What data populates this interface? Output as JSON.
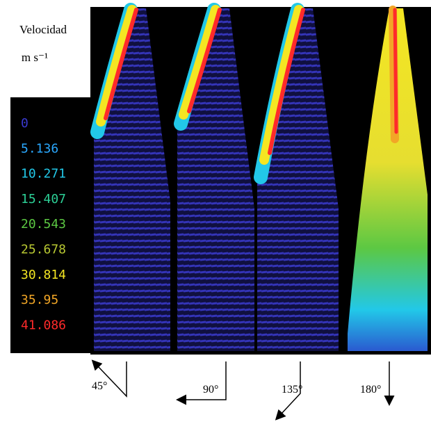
{
  "legend": {
    "title": "Velocidad",
    "unit": "m s⁻¹",
    "entries": [
      {
        "label": "0",
        "color": "#3a3ad0"
      },
      {
        "label": "5.136",
        "color": "#2aa8ff"
      },
      {
        "label": "10.271",
        "color": "#22c8e8"
      },
      {
        "label": "15.407",
        "color": "#2ccf96"
      },
      {
        "label": "20.543",
        "color": "#5cc843"
      },
      {
        "label": "25.678",
        "color": "#b8c832"
      },
      {
        "label": "30.814",
        "color": "#f4e622"
      },
      {
        "label": "35.95",
        "color": "#f2a626"
      },
      {
        "label": "41.086",
        "color": "#ff2a2a"
      }
    ]
  },
  "panels": [
    {
      "angle": "45°"
    },
    {
      "angle": "90°"
    },
    {
      "angle": "135°"
    },
    {
      "angle": "180°"
    }
  ]
}
